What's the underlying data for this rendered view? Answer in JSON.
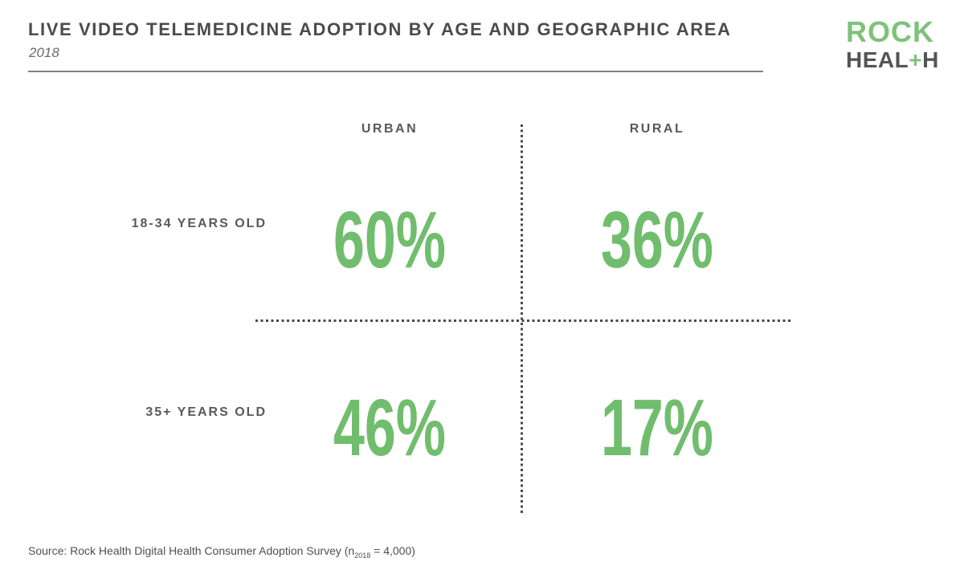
{
  "header": {
    "title": "LIVE VIDEO TELEMEDICINE ADOPTION BY AGE AND GEOGRAPHIC AREA",
    "subtitle": "2018"
  },
  "logo": {
    "top": "ROCK",
    "bottom_left": "HEAL",
    "plus": "+",
    "bottom_right": "H"
  },
  "matrix": {
    "col_headers": [
      "URBAN",
      "RURAL"
    ],
    "row_labels": [
      "18-34 YEARS OLD",
      "35+ YEARS OLD"
    ],
    "values": [
      [
        "60%",
        "36%"
      ],
      [
        "46%",
        "17%"
      ]
    ]
  },
  "source": {
    "prefix": "Source: Rock Health Digital Health Consumer Adoption Survey (n",
    "subscript": "2018",
    "suffix": " = 4,000)"
  },
  "colors": {
    "green": "#70bd6e",
    "logo_green": "#7fc17a",
    "dark_text": "#4a4b4d",
    "gray_text": "#58595b",
    "rule": "#7f8082",
    "dots": "#47484a"
  },
  "chart_data": {
    "type": "table",
    "title": "Live Video Telemedicine Adoption by Age and Geographic Area",
    "year": "2018",
    "columns": [
      "Urban",
      "Rural"
    ],
    "rows": [
      "18-34 years old",
      "35+ years old"
    ],
    "series": [
      {
        "name": "18-34 years old",
        "values": [
          60,
          36
        ]
      },
      {
        "name": "35+ years old",
        "values": [
          46,
          17
        ]
      }
    ],
    "unit": "percent",
    "source": "Rock Health Digital Health Consumer Adoption Survey (n 2018 = 4,000)"
  }
}
